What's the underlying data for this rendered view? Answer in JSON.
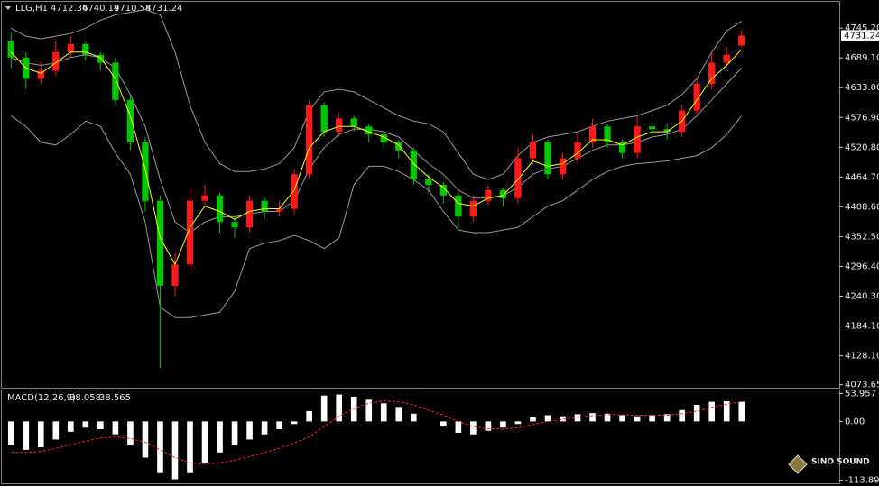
{
  "chart_data": [
    {
      "type": "candlestick",
      "symbol": "LLG,H1",
      "open": [
        4720,
        4690,
        4650,
        4665,
        4700,
        4715,
        4695,
        4680,
        4610,
        4530,
        4420,
        4260,
        4300,
        4420,
        4430,
        4380,
        4370,
        4420,
        4400,
        4405,
        4470,
        4600,
        4550,
        4575,
        4560,
        4545,
        4530,
        4515,
        4460,
        4450,
        4430,
        4390,
        4420,
        4440,
        4425,
        4500,
        4530,
        4470,
        4500,
        4530,
        4560,
        4530,
        4510,
        4560,
        4555,
        4550,
        4590,
        4640,
        4680,
        4712.36
      ],
      "high": [
        4735,
        4700,
        4680,
        4720,
        4730,
        4720,
        4700,
        4690,
        4620,
        4540,
        4430,
        4320,
        4440,
        4450,
        4435,
        4390,
        4430,
        4425,
        4420,
        4480,
        4610,
        4605,
        4585,
        4580,
        4565,
        4550,
        4535,
        4520,
        4470,
        4455,
        4435,
        4430,
        4450,
        4445,
        4520,
        4545,
        4535,
        4510,
        4545,
        4575,
        4565,
        4535,
        4580,
        4570,
        4565,
        4600,
        4650,
        4700,
        4710,
        4740.19
      ],
      "low": [
        4670,
        4630,
        4640,
        4655,
        4690,
        4685,
        4665,
        4600,
        4515,
        4400,
        4105,
        4240,
        4290,
        4410,
        4360,
        4350,
        4360,
        4385,
        4390,
        4395,
        4460,
        4540,
        4540,
        4550,
        4530,
        4520,
        4500,
        4450,
        4435,
        4415,
        4370,
        4380,
        4410,
        4410,
        4415,
        4490,
        4460,
        4460,
        4490,
        4520,
        4520,
        4500,
        4500,
        4540,
        4535,
        4540,
        4580,
        4630,
        4670,
        4710.58
      ],
      "close": [
        4690,
        4650,
        4665,
        4700,
        4715,
        4695,
        4680,
        4610,
        4530,
        4420,
        4260,
        4300,
        4420,
        4430,
        4380,
        4370,
        4420,
        4400,
        4405,
        4470,
        4600,
        4550,
        4575,
        4560,
        4545,
        4530,
        4515,
        4460,
        4450,
        4430,
        4390,
        4420,
        4440,
        4425,
        4500,
        4530,
        4470,
        4500,
        4530,
        4560,
        4530,
        4510,
        4560,
        4555,
        4550,
        4590,
        4640,
        4680,
        4695,
        4731.24
      ],
      "ma": [
        4700,
        4670,
        4660,
        4680,
        4700,
        4700,
        4690,
        4650,
        4580,
        4480,
        4350,
        4300,
        4370,
        4410,
        4400,
        4385,
        4400,
        4405,
        4405,
        4440,
        4520,
        4550,
        4560,
        4560,
        4550,
        4540,
        4525,
        4490,
        4465,
        4445,
        4415,
        4410,
        4425,
        4430,
        4460,
        4495,
        4485,
        4490,
        4510,
        4535,
        4535,
        4525,
        4540,
        4550,
        4550,
        4570,
        4610,
        4650,
        4675,
        4705
      ],
      "band_middle": [
        4690,
        4680,
        4675,
        4680,
        4690,
        4695,
        4690,
        4670,
        4620,
        4560,
        4460,
        4380,
        4360,
        4380,
        4390,
        4390,
        4395,
        4400,
        4400,
        4420,
        4480,
        4520,
        4545,
        4555,
        4555,
        4550,
        4540,
        4515,
        4490,
        4470,
        4440,
        4425,
        4425,
        4430,
        4445,
        4470,
        4480,
        4485,
        4500,
        4515,
        4525,
        4525,
        4530,
        4540,
        4545,
        4555,
        4580,
        4610,
        4640,
        4670
      ],
      "band_upper": [
        4745,
        4730,
        4725,
        4730,
        4735,
        4745,
        4760,
        4770,
        4775,
        4780,
        4770,
        4700,
        4600,
        4530,
        4490,
        4475,
        4475,
        4480,
        4490,
        4520,
        4590,
        4625,
        4630,
        4625,
        4610,
        4595,
        4580,
        4570,
        4565,
        4550,
        4510,
        4470,
        4460,
        4470,
        4505,
        4530,
        4540,
        4545,
        4550,
        4560,
        4570,
        4575,
        4580,
        4590,
        4600,
        4620,
        4650,
        4700,
        4740,
        4758
      ],
      "band_lower": [
        4580,
        4560,
        4530,
        4525,
        4545,
        4570,
        4560,
        4510,
        4470,
        4380,
        4220,
        4200,
        4200,
        4205,
        4210,
        4250,
        4330,
        4340,
        4345,
        4355,
        4345,
        4330,
        4350,
        4450,
        4485,
        4485,
        4475,
        4460,
        4440,
        4400,
        4365,
        4360,
        4360,
        4365,
        4370,
        4390,
        4410,
        4420,
        4440,
        4460,
        4475,
        4485,
        4490,
        4492,
        4495,
        4500,
        4505,
        4520,
        4545,
        4580
      ],
      "up_color": "#ff1a1a",
      "down_color": "#00c800",
      "ma_color": "#ffff00",
      "band_color": "#9a9a9a",
      "ylim": [
        4068,
        4793
      ],
      "yticks": [
        {
          "value": 4745.2,
          "label": "4745.20"
        },
        {
          "value": 4689.1,
          "label": "4689.10"
        },
        {
          "value": 4633,
          "label": "4633.00"
        },
        {
          "value": 4576.9,
          "label": "4576.90"
        },
        {
          "value": 4520.8,
          "label": "4520.80"
        },
        {
          "value": 4464.7,
          "label": "4464.70"
        },
        {
          "value": 4408.6,
          "label": "4408.60"
        },
        {
          "value": 4352.5,
          "label": "4352.50"
        },
        {
          "value": 4296.4,
          "label": "4296.40"
        },
        {
          "value": 4240.3,
          "label": "4240.30"
        },
        {
          "value": 4184.1,
          "label": "4184.10"
        },
        {
          "value": 4128.1,
          "label": "4128.10"
        },
        4073.65
      ],
      "grid": false
    },
    {
      "type": "macd",
      "title": "MACD(12,26,9)",
      "histogram": [
        -45,
        -55,
        -50,
        -35,
        -20,
        -12,
        -15,
        -25,
        -45,
        -70,
        -100,
        -112,
        -100,
        -80,
        -60,
        -45,
        -35,
        -25,
        -15,
        -5,
        20,
        50,
        52,
        48,
        42,
        35,
        28,
        15,
        0,
        -10,
        -22,
        -25,
        -18,
        -12,
        -5,
        8,
        12,
        10,
        14,
        16,
        15,
        12,
        10,
        12,
        14,
        22,
        32,
        38,
        39,
        38.058
      ],
      "signal": [
        -60,
        -60,
        -58,
        -52,
        -45,
        -38,
        -32,
        -30,
        -33,
        -40,
        -55,
        -70,
        -80,
        -83,
        -80,
        -75,
        -68,
        -60,
        -52,
        -42,
        -30,
        -10,
        10,
        25,
        35,
        40,
        38,
        32,
        22,
        12,
        0,
        -10,
        -14,
        -15,
        -12,
        -6,
        0,
        4,
        8,
        11,
        13,
        13,
        12,
        12,
        12,
        15,
        20,
        27,
        33,
        38.565
      ],
      "hist_color": "#ffffff",
      "signal_color": "#ff2020",
      "ylim": [
        -118,
        60
      ],
      "yticks": [
        53.957,
        {
          "value": 0,
          "label": "0.00"
        },
        -113.892
      ]
    }
  ],
  "watermark": "SINO SOUND"
}
